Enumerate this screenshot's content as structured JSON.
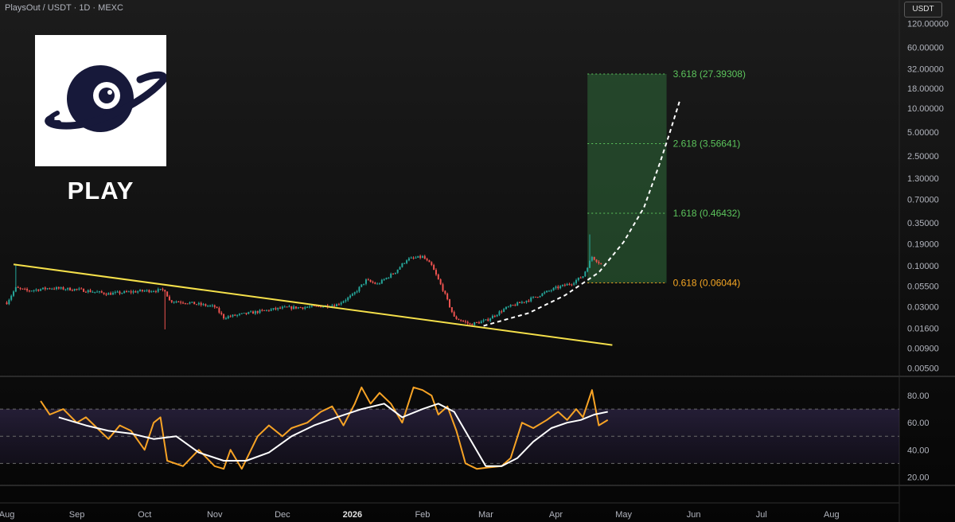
{
  "header": {
    "symbol": "PlaysOut / USDT · 1D · MEXC"
  },
  "price_scale": {
    "currency": "USDT",
    "ticks": [
      {
        "value": 120,
        "label": "120.00000"
      },
      {
        "value": 60,
        "label": "60.00000"
      },
      {
        "value": 32,
        "label": "32.00000"
      },
      {
        "value": 18,
        "label": "18.00000"
      },
      {
        "value": 10,
        "label": "10.00000"
      },
      {
        "value": 5,
        "label": "5.00000"
      },
      {
        "value": 2.5,
        "label": "2.50000"
      },
      {
        "value": 1.3,
        "label": "1.30000"
      },
      {
        "value": 0.7,
        "label": "0.70000"
      },
      {
        "value": 0.35,
        "label": "0.35000"
      },
      {
        "value": 0.19,
        "label": "0.19000"
      },
      {
        "value": 0.1,
        "label": "0.10000"
      },
      {
        "value": 0.055,
        "label": "0.05500"
      },
      {
        "value": 0.03,
        "label": "0.03000"
      },
      {
        "value": 0.016,
        "label": "0.01600"
      },
      {
        "value": 0.009,
        "label": "0.00900"
      },
      {
        "value": 0.005,
        "label": "0.00500"
      }
    ]
  },
  "logo": {
    "title": "PLAY",
    "icon": "planet-eye-icon"
  },
  "chart_data": [
    {
      "type": "candlestick",
      "title": "",
      "y_scale": "log",
      "ylim": [
        0.0042,
        150
      ],
      "x_axis": {
        "range": [
          "2025-07-29",
          "2026-08-31"
        ],
        "ticks": [
          {
            "date": "2025-08-01",
            "label": "Aug"
          },
          {
            "date": "2025-09-01",
            "label": "Sep"
          },
          {
            "date": "2025-10-01",
            "label": "Oct"
          },
          {
            "date": "2025-11-01",
            "label": "Nov"
          },
          {
            "date": "2025-12-01",
            "label": "Dec"
          },
          {
            "date": "2026-01-01",
            "label": "2026",
            "bold": true
          },
          {
            "date": "2026-02-01",
            "label": "Feb"
          },
          {
            "date": "2026-03-01",
            "label": "Mar"
          },
          {
            "date": "2026-04-01",
            "label": "Apr"
          },
          {
            "date": "2026-05-01",
            "label": "May"
          },
          {
            "date": "2026-06-01",
            "label": "Jun"
          },
          {
            "date": "2026-07-01",
            "label": "Jul"
          },
          {
            "date": "2026-08-01",
            "label": "Aug"
          }
        ]
      },
      "price_path": [
        [
          "2025-08-01",
          0.034
        ],
        [
          "2025-08-05",
          0.052
        ],
        [
          "2025-08-10",
          0.048
        ],
        [
          "2025-08-20",
          0.052
        ],
        [
          "2025-09-01",
          0.05
        ],
        [
          "2025-09-15",
          0.044
        ],
        [
          "2025-10-01",
          0.048
        ],
        [
          "2025-10-10",
          0.049
        ],
        [
          "2025-10-12",
          0.036
        ],
        [
          "2025-10-20",
          0.034
        ],
        [
          "2025-11-01",
          0.03
        ],
        [
          "2025-11-05",
          0.022
        ],
        [
          "2025-11-20",
          0.026
        ],
        [
          "2025-12-01",
          0.029
        ],
        [
          "2025-12-15",
          0.03
        ],
        [
          "2025-12-25",
          0.032
        ],
        [
          "2026-01-01",
          0.042
        ],
        [
          "2026-01-07",
          0.065
        ],
        [
          "2026-01-12",
          0.058
        ],
        [
          "2026-01-20",
          0.084
        ],
        [
          "2026-01-25",
          0.12
        ],
        [
          "2026-02-01",
          0.13
        ],
        [
          "2026-02-05",
          0.1
        ],
        [
          "2026-02-10",
          0.05
        ],
        [
          "2026-02-15",
          0.022
        ],
        [
          "2026-02-22",
          0.018
        ],
        [
          "2026-03-01",
          0.02
        ],
        [
          "2026-03-10",
          0.029
        ],
        [
          "2026-03-20",
          0.037
        ],
        [
          "2026-04-01",
          0.052
        ],
        [
          "2026-04-08",
          0.06
        ],
        [
          "2026-04-13",
          0.074
        ],
        [
          "2026-04-17",
          0.13
        ],
        [
          "2026-04-21",
          0.105
        ]
      ],
      "notable_wicks": [
        {
          "date": "2025-08-05",
          "high": 0.105
        },
        {
          "date": "2025-10-10",
          "low": 0.0155
        },
        {
          "date": "2026-04-16",
          "high": 0.25
        }
      ],
      "trendline": {
        "color": "#f5e04a",
        "points": [
          [
            "2025-08-04",
            0.104
          ],
          [
            "2026-04-26",
            0.0098
          ]
        ]
      },
      "projection_curve": {
        "style": "dashed",
        "color": "#ffffff",
        "points": [
          [
            "2026-02-28",
            0.0172
          ],
          [
            "2026-03-20",
            0.025
          ],
          [
            "2026-04-05",
            0.042
          ],
          [
            "2026-04-20",
            0.082
          ],
          [
            "2026-05-01",
            0.2
          ],
          [
            "2026-05-10",
            0.55
          ],
          [
            "2026-05-17",
            2.0
          ],
          [
            "2026-05-21",
            4.5
          ],
          [
            "2026-05-26",
            13.0
          ]
        ]
      },
      "target_zone": {
        "from": "2026-04-15",
        "to": "2026-05-20",
        "bottom": 0.06044,
        "top": 27.39308,
        "fill": "#2f6b3a",
        "levels": [
          {
            "value": 27.39308,
            "label": "3.618 (27.39308)",
            "color": "#5cc45c"
          },
          {
            "value": 3.56641,
            "label": "2.618 (3.56641)",
            "color": "#5cc45c"
          },
          {
            "value": 0.46432,
            "label": "1.618 (0.46432)",
            "color": "#5cc45c"
          },
          {
            "value": 0.06044,
            "label": "0.618 (0.06044)",
            "color": "#f5a623"
          }
        ]
      },
      "colors": {
        "up": "#26a69a",
        "down": "#ef5350"
      }
    },
    {
      "type": "line",
      "title": "",
      "ylim": [
        15,
        90
      ],
      "y_ticks": [
        {
          "value": 80,
          "label": "80.00"
        },
        {
          "value": 60,
          "label": "60.00"
        },
        {
          "value": 40,
          "label": "40.00"
        },
        {
          "value": 20,
          "label": "20.00"
        }
      ],
      "band_levels": [
        70,
        50,
        30
      ],
      "series": [
        {
          "color": "#f7a325",
          "values": [
            [
              "2025-08-16",
              76
            ],
            [
              "2025-08-20",
              66
            ],
            [
              "2025-08-26",
              70
            ],
            [
              "2025-09-01",
              60
            ],
            [
              "2025-09-05",
              64
            ],
            [
              "2025-09-10",
              56
            ],
            [
              "2025-09-15",
              48
            ],
            [
              "2025-09-20",
              58
            ],
            [
              "2025-09-25",
              54
            ],
            [
              "2025-10-01",
              40
            ],
            [
              "2025-10-05",
              60
            ],
            [
              "2025-10-08",
              64
            ],
            [
              "2025-10-11",
              32
            ],
            [
              "2025-10-18",
              28
            ],
            [
              "2025-10-25",
              40
            ],
            [
              "2025-11-01",
              28
            ],
            [
              "2025-11-05",
              26
            ],
            [
              "2025-11-08",
              40
            ],
            [
              "2025-11-13",
              26
            ],
            [
              "2025-11-20",
              50
            ],
            [
              "2025-11-25",
              58
            ],
            [
              "2025-12-01",
              50
            ],
            [
              "2025-12-05",
              56
            ],
            [
              "2025-12-12",
              60
            ],
            [
              "2025-12-18",
              68
            ],
            [
              "2025-12-23",
              72
            ],
            [
              "2025-12-28",
              58
            ],
            [
              "2026-01-02",
              74
            ],
            [
              "2026-01-05",
              86
            ],
            [
              "2026-01-09",
              74
            ],
            [
              "2026-01-13",
              82
            ],
            [
              "2026-01-18",
              74
            ],
            [
              "2026-01-23",
              60
            ],
            [
              "2026-01-28",
              86
            ],
            [
              "2026-02-01",
              84
            ],
            [
              "2026-02-05",
              80
            ],
            [
              "2026-02-08",
              66
            ],
            [
              "2026-02-12",
              72
            ],
            [
              "2026-02-16",
              54
            ],
            [
              "2026-02-20",
              30
            ],
            [
              "2026-02-25",
              26
            ],
            [
              "2026-03-02",
              27
            ],
            [
              "2026-03-08",
              28
            ],
            [
              "2026-03-12",
              34
            ],
            [
              "2026-03-17",
              60
            ],
            [
              "2026-03-22",
              56
            ],
            [
              "2026-03-28",
              62
            ],
            [
              "2026-04-02",
              68
            ],
            [
              "2026-04-06",
              62
            ],
            [
              "2026-04-10",
              70
            ],
            [
              "2026-04-13",
              64
            ],
            [
              "2026-04-17",
              84
            ],
            [
              "2026-04-20",
              58
            ],
            [
              "2026-04-24",
              62
            ]
          ]
        },
        {
          "color": "#ffffff",
          "values": [
            [
              "2025-08-24",
              64
            ],
            [
              "2025-09-05",
              58
            ],
            [
              "2025-09-15",
              54
            ],
            [
              "2025-09-25",
              52
            ],
            [
              "2025-10-05",
              48
            ],
            [
              "2025-10-15",
              50
            ],
            [
              "2025-10-25",
              38
            ],
            [
              "2025-11-05",
              32
            ],
            [
              "2025-11-15",
              32
            ],
            [
              "2025-11-25",
              38
            ],
            [
              "2025-12-05",
              50
            ],
            [
              "2025-12-15",
              58
            ],
            [
              "2025-12-25",
              64
            ],
            [
              "2026-01-05",
              70
            ],
            [
              "2026-01-15",
              74
            ],
            [
              "2026-01-23",
              64
            ],
            [
              "2026-02-01",
              70
            ],
            [
              "2026-02-08",
              74
            ],
            [
              "2026-02-15",
              68
            ],
            [
              "2026-02-22",
              48
            ],
            [
              "2026-03-01",
              28
            ],
            [
              "2026-03-08",
              28
            ],
            [
              "2026-03-15",
              34
            ],
            [
              "2026-03-22",
              46
            ],
            [
              "2026-03-30",
              56
            ],
            [
              "2026-04-06",
              60
            ],
            [
              "2026-04-12",
              62
            ],
            [
              "2026-04-18",
              66
            ],
            [
              "2026-04-24",
              68
            ]
          ]
        }
      ]
    }
  ]
}
